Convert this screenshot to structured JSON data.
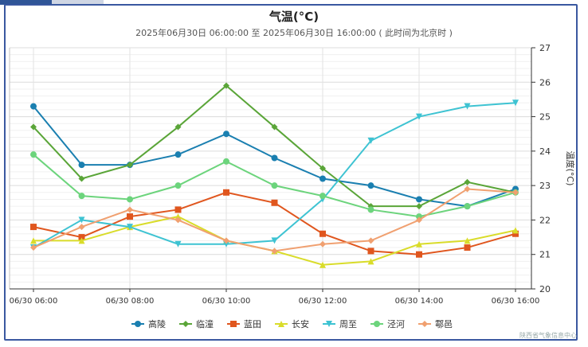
{
  "chart_data": {
    "type": "line",
    "title": "气温(°C)",
    "subtitle": "2025年06月30日 06:00:00 至 2025年06月30日 16:00:00 ( 此时间为北京时 )",
    "ylabel": "温度(°C)",
    "ylim": [
      20,
      27
    ],
    "yticks": [
      "20",
      "21",
      "22",
      "23",
      "24",
      "25",
      "26",
      "27"
    ],
    "y_axis_position": "right",
    "grid": true,
    "legend_position": "bottom",
    "x": [
      "06:00",
      "07:00",
      "08:00",
      "09:00",
      "10:00",
      "11:00",
      "12:00",
      "13:00",
      "14:00",
      "15:00",
      "16:00"
    ],
    "xtick_labels": [
      "06/30 06:00",
      "06/30 08:00",
      "06/30 10:00",
      "06/30 12:00",
      "06/30 14:00",
      "06/30 16:00"
    ],
    "series": [
      {
        "name": "高陵",
        "color": "#1a7fb0",
        "marker": "circle",
        "values": [
          25.3,
          23.6,
          23.6,
          23.9,
          24.5,
          23.8,
          23.2,
          23.0,
          22.6,
          22.4,
          22.9
        ]
      },
      {
        "name": "临潼",
        "color": "#5aa538",
        "marker": "diamond",
        "values": [
          24.7,
          23.2,
          23.6,
          24.7,
          25.9,
          24.7,
          23.5,
          22.4,
          22.4,
          23.1,
          22.8
        ]
      },
      {
        "name": "蓝田",
        "color": "#e0561e",
        "marker": "square",
        "values": [
          21.8,
          21.5,
          22.1,
          22.3,
          22.8,
          22.5,
          21.6,
          21.1,
          21.0,
          21.2,
          21.6
        ]
      },
      {
        "name": "长安",
        "color": "#d9dc2a",
        "marker": "triangle",
        "values": [
          21.4,
          21.4,
          21.8,
          22.1,
          21.4,
          21.1,
          20.7,
          20.8,
          21.3,
          21.4,
          21.7
        ]
      },
      {
        "name": "周至",
        "color": "#3ec3d2",
        "marker": "triangle-down",
        "values": [
          21.2,
          22.0,
          21.8,
          21.3,
          21.3,
          21.4,
          22.6,
          24.3,
          25.0,
          25.3,
          25.4
        ]
      },
      {
        "name": "泾河",
        "color": "#6cd47c",
        "marker": "circle",
        "values": [
          23.9,
          22.7,
          22.6,
          23.0,
          23.7,
          23.0,
          22.7,
          22.3,
          22.1,
          22.4,
          22.8
        ]
      },
      {
        "name": "鄠邑",
        "color": "#f0a070",
        "marker": "diamond",
        "values": [
          21.2,
          21.8,
          22.3,
          22.0,
          21.4,
          21.1,
          21.3,
          21.4,
          22.0,
          22.9,
          22.8
        ]
      }
    ]
  },
  "footer": "陕西省气象信息中心"
}
